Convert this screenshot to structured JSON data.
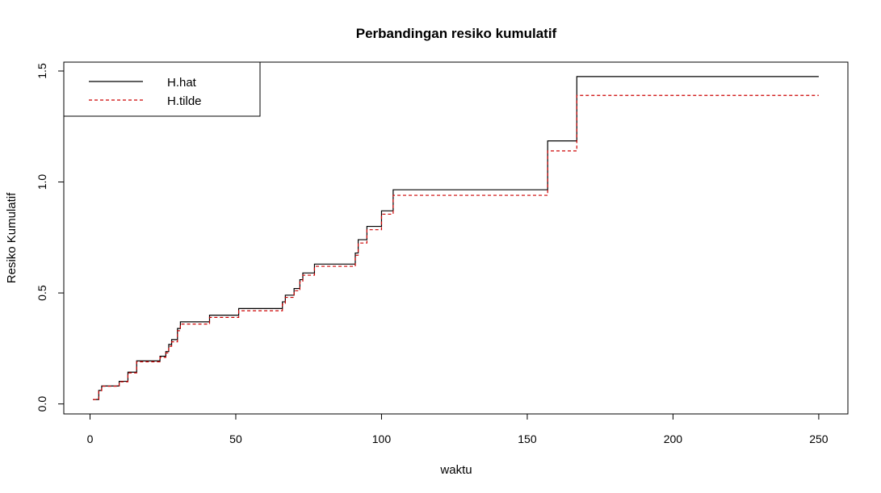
{
  "chart_data": {
    "type": "line",
    "step": true,
    "title": "Perbandingan resiko kumulatif",
    "xlabel": "waktu",
    "ylabel": "Resiko Kumulatif",
    "xlim": [
      -9,
      260
    ],
    "ylim": [
      -0.045,
      1.54
    ],
    "xticks": [
      0,
      50,
      100,
      150,
      200,
      250
    ],
    "yticks": [
      0.0,
      0.5,
      1.0,
      1.5
    ],
    "xtick_labels": [
      "0",
      "50",
      "100",
      "150",
      "200",
      "250"
    ],
    "ytick_labels": [
      "0.0",
      "0.5",
      "1.0",
      "1.5"
    ],
    "grid": false,
    "legend_position": "top-left",
    "series": [
      {
        "name": "H.hat",
        "color": "#000000",
        "dash": "solid",
        "x": [
          1,
          3,
          4,
          10,
          13,
          16,
          24,
          26,
          27,
          28,
          30,
          31,
          41,
          51,
          66,
          67,
          70,
          72,
          73,
          77,
          91,
          92,
          95,
          100,
          104,
          157,
          167,
          250
        ],
        "y": [
          0.02,
          0.061,
          0.081,
          0.102,
          0.143,
          0.194,
          0.215,
          0.236,
          0.268,
          0.29,
          0.34,
          0.37,
          0.4,
          0.43,
          0.46,
          0.49,
          0.52,
          0.56,
          0.59,
          0.63,
          0.68,
          0.74,
          0.8,
          0.87,
          0.965,
          1.185,
          1.475,
          1.475
        ]
      },
      {
        "name": "H.tilde",
        "color": "#cc0000",
        "dash": "dashed",
        "x": [
          1,
          3,
          4,
          10,
          13,
          16,
          24,
          26,
          27,
          28,
          30,
          31,
          41,
          51,
          66,
          67,
          70,
          72,
          73,
          77,
          91,
          92,
          95,
          100,
          104,
          157,
          167,
          250
        ],
        "y": [
          0.02,
          0.06,
          0.08,
          0.1,
          0.14,
          0.19,
          0.21,
          0.23,
          0.26,
          0.28,
          0.33,
          0.36,
          0.39,
          0.42,
          0.45,
          0.48,
          0.51,
          0.55,
          0.58,
          0.62,
          0.67,
          0.725,
          0.785,
          0.855,
          0.94,
          1.14,
          1.39,
          1.39
        ]
      }
    ]
  }
}
